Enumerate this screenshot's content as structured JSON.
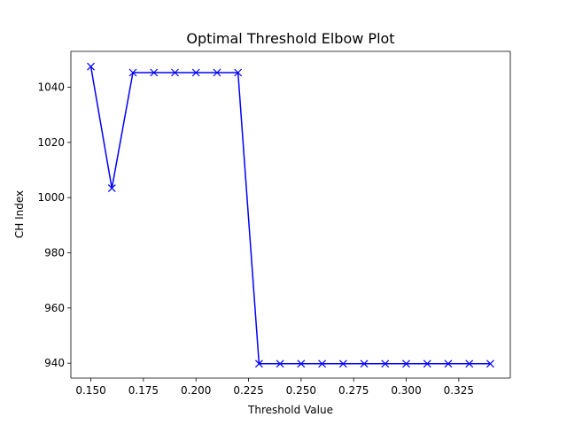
{
  "chart_data": {
    "type": "line",
    "title": "Optimal Threshold Elbow Plot",
    "xlabel": "Threshold Value",
    "ylabel": "CH Index",
    "xlim": [
      0.1405,
      0.3495
    ],
    "ylim": [
      934.6,
      1053.0
    ],
    "x_ticks": [
      "0.150",
      "0.175",
      "0.200",
      "0.225",
      "0.250",
      "0.275",
      "0.300",
      "0.325"
    ],
    "x_tick_values": [
      0.15,
      0.175,
      0.2,
      0.225,
      0.25,
      0.275,
      0.3,
      0.325
    ],
    "y_ticks": [
      "940",
      "960",
      "980",
      "1000",
      "1020",
      "1040"
    ],
    "y_tick_values": [
      940,
      960,
      980,
      1000,
      1020,
      1040
    ],
    "grid": false,
    "series": [
      {
        "color": "#0000ff",
        "marker": "x",
        "x": [
          0.15,
          0.16,
          0.17,
          0.18,
          0.19,
          0.2,
          0.21,
          0.22,
          0.23,
          0.24,
          0.25,
          0.26,
          0.27,
          0.28,
          0.29,
          0.3,
          0.31,
          0.32,
          0.33,
          0.34
        ],
        "y": [
          1047.5,
          1003.4,
          1045.3,
          1045.3,
          1045.3,
          1045.3,
          1045.3,
          1045.3,
          939.8,
          939.8,
          939.8,
          939.8,
          939.8,
          939.8,
          939.8,
          939.8,
          939.8,
          939.8,
          939.8,
          939.8
        ]
      }
    ]
  }
}
